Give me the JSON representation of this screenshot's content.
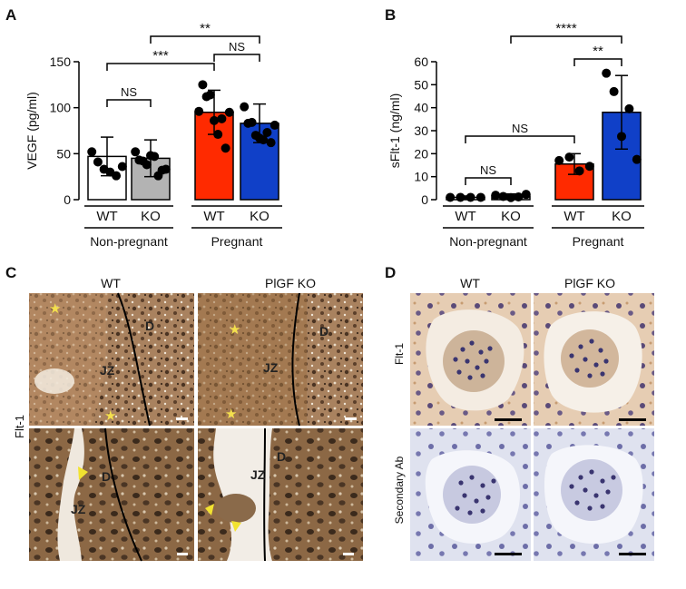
{
  "panels": {
    "a": "A",
    "b": "B",
    "c": "C",
    "d": "D"
  },
  "chart_data": [
    {
      "type": "bar",
      "panel": "A",
      "ylabel": "VEGF (pg/ml)",
      "ylim": [
        0,
        150
      ],
      "yticks": [
        0,
        50,
        100,
        150
      ],
      "categories": [
        "WT",
        "KO",
        "WT",
        "KO"
      ],
      "groups": [
        "Non-pregnant",
        "Pregnant"
      ],
      "bar_colors": [
        "#ffffff",
        "#b3b3b3",
        "#ff2a00",
        "#1040c8"
      ],
      "values": [
        47,
        45,
        95,
        83
      ],
      "errors": [
        21,
        20,
        24,
        21
      ],
      "points": [
        [
          52,
          41,
          33,
          30,
          26,
          36
        ],
        [
          52,
          43,
          42,
          38,
          48,
          47,
          26,
          32,
          33
        ],
        [
          96,
          125,
          112,
          114,
          86,
          71,
          88,
          56,
          95
        ],
        [
          101,
          83,
          84,
          70,
          67,
          65,
          73,
          62,
          81
        ]
      ],
      "comparisons": [
        {
          "from": 0,
          "to": 1,
          "label": "NS"
        },
        {
          "from": 2,
          "to": 3,
          "label": "NS"
        },
        {
          "from": 0,
          "to": 2,
          "label": "***"
        },
        {
          "from": 1,
          "to": 3,
          "label": "**"
        }
      ]
    },
    {
      "type": "bar",
      "panel": "B",
      "ylabel": "sFlt-1 (ng/ml)",
      "ylim": [
        0,
        60
      ],
      "yticks": [
        0,
        10,
        20,
        30,
        40,
        50,
        60
      ],
      "categories": [
        "WT",
        "KO",
        "WT",
        "KO"
      ],
      "groups": [
        "Non-pregnant",
        "Pregnant"
      ],
      "bar_colors": [
        "#ffffff",
        "#b3b3b3",
        "#ff2a00",
        "#1040c8"
      ],
      "values": [
        1.0,
        1.5,
        15.5,
        38
      ],
      "errors": [
        0.6,
        1.0,
        4.5,
        16
      ],
      "points": [
        [
          1.0,
          1.0,
          1.0,
          1.0
        ],
        [
          1.9,
          1.4,
          0.9,
          1.2,
          2.3
        ],
        [
          17.0,
          18.5,
          12.5,
          14.5
        ],
        [
          55,
          47,
          27.5,
          39.5,
          17.5
        ]
      ],
      "comparisons": [
        {
          "from": 0,
          "to": 1,
          "label": "NS"
        },
        {
          "from": 0,
          "to": 2,
          "label": "NS"
        },
        {
          "from": 2,
          "to": 3,
          "label": "**"
        },
        {
          "from": 1,
          "to": 3,
          "label": "****"
        }
      ]
    }
  ],
  "panel_c": {
    "col_titles": [
      "WT",
      "PlGF KO"
    ],
    "row_label": "Flt-1",
    "tile_labels": [
      {
        "d": "D",
        "jz": "JZ"
      },
      {
        "d": "D",
        "jz": "JZ"
      },
      {
        "d": "D",
        "jz": "JZ"
      },
      {
        "d": "D",
        "jz": "JZ"
      }
    ]
  },
  "panel_d": {
    "col_titles": [
      "WT",
      "PlGF KO"
    ],
    "row_labels": [
      "Flt-1",
      "Secondary Ab"
    ]
  },
  "colors": {
    "stain_brown": "#b8895a",
    "stain_dark": "#6b4a2e",
    "stain_light": "#d9c0a3",
    "kidney_bg_brown": "#e2c7ad",
    "kidney_bg_blue": "#dcdfee",
    "nuclei": "#3a3570",
    "arrow_yellow": "#f2e330"
  }
}
